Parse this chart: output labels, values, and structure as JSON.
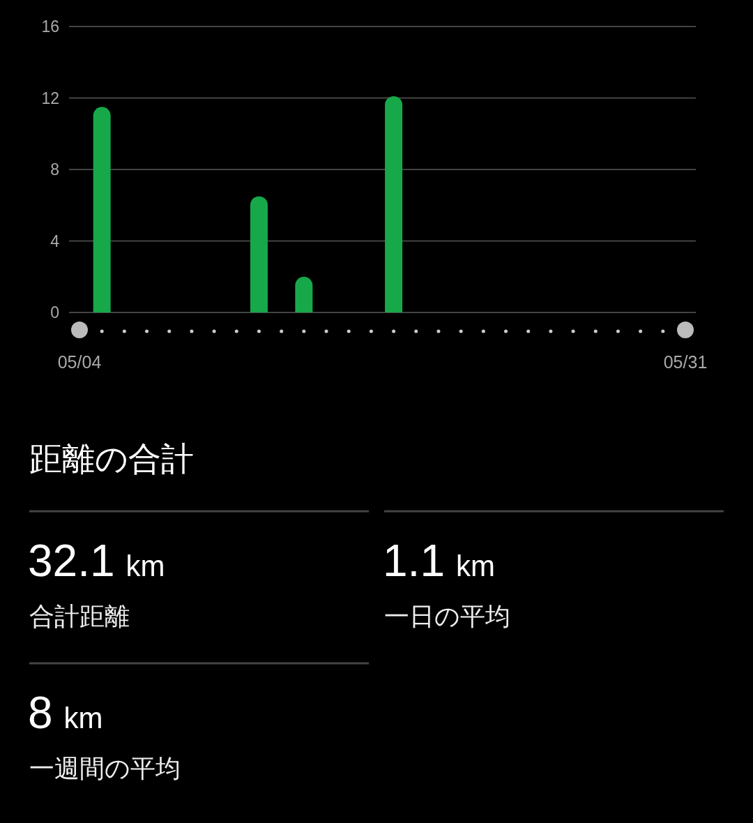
{
  "chart_data": [
    {
      "type": "bar",
      "categories": [
        "05/04",
        null,
        null,
        null,
        null,
        null,
        null,
        null,
        null,
        null,
        null,
        null,
        null,
        null,
        null,
        null,
        null,
        null,
        null,
        null,
        null,
        null,
        null,
        null,
        null,
        null,
        null,
        "05/31"
      ],
      "values": [
        0,
        11.5,
        0,
        0,
        0,
        0,
        0,
        0,
        6.5,
        0,
        2.0,
        0,
        0,
        0,
        12.1,
        0,
        0,
        0,
        0,
        0,
        0,
        0,
        0,
        0,
        0,
        0,
        0,
        0
      ],
      "color": "#17a84a",
      "ylim": [
        0,
        16
      ],
      "yticks": [
        0,
        4,
        8,
        12,
        16
      ],
      "grid": "y"
    },
    {
      "type": "other",
      "title": "距離の合計",
      "annotations": [
        "32.1 km",
        "合計距離",
        "1.1 km",
        "一日の平均",
        "8 km",
        "一週間の平均"
      ]
    }
  ]
}
